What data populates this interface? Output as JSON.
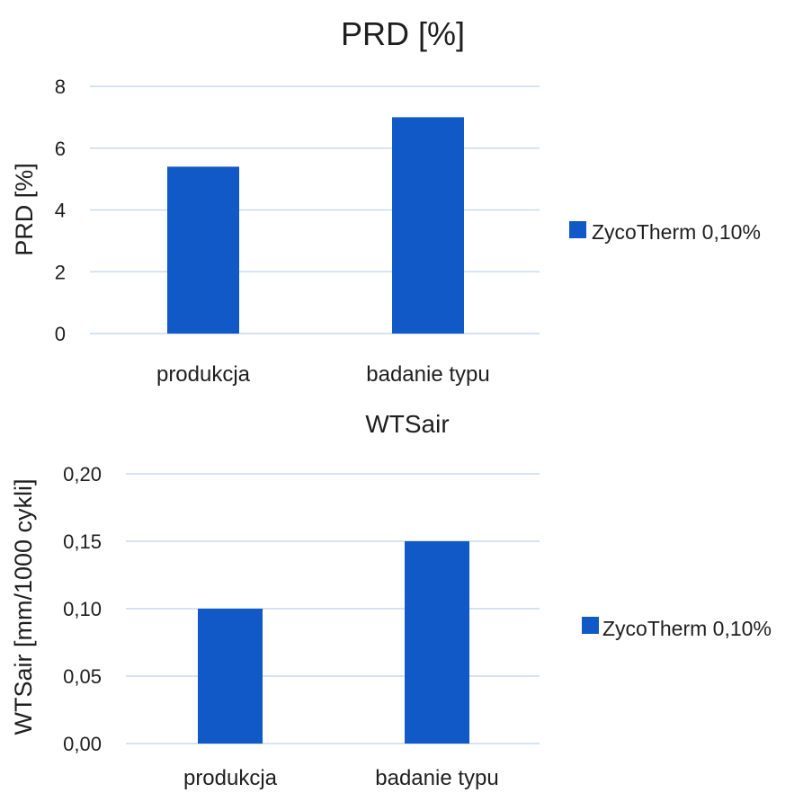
{
  "colors": {
    "bar": "#1059c6",
    "grid": "#c8daf0",
    "text": "#1f1f1f"
  },
  "chart_data": [
    {
      "type": "bar",
      "title": "PRD [%]",
      "xlabel": "",
      "ylabel": "PRD [%]",
      "categories": [
        "produkcja",
        "badanie typu"
      ],
      "series": [
        {
          "name": "ZycoTherm 0,10%",
          "values": [
            5.4,
            7.0
          ]
        }
      ],
      "ylim": [
        0,
        8
      ],
      "yticks": [
        "0",
        "2",
        "4",
        "6",
        "8"
      ],
      "grid": true,
      "legend": "right"
    },
    {
      "type": "bar",
      "title": "WTSair",
      "xlabel": "",
      "ylabel": "WTSair [mm/1000 cykli]",
      "categories": [
        "produkcja",
        "badanie typu"
      ],
      "series": [
        {
          "name": "ZycoTherm 0,10%",
          "values": [
            0.1,
            0.15
          ]
        }
      ],
      "ylim": [
        0,
        0.2
      ],
      "yticks": [
        "0,00",
        "0,05",
        "0,10",
        "0,15",
        "0,20"
      ],
      "grid": true,
      "legend": "right"
    }
  ]
}
